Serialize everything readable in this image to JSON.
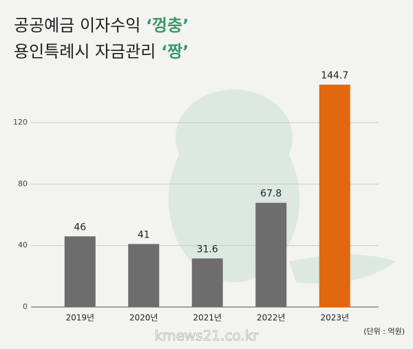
{
  "chart_data": {
    "type": "bar",
    "title_lines": [
      {
        "text": "공공예금 이자수익",
        "highlight": "‘껑충’"
      },
      {
        "text": "용인특례시 자금관리",
        "highlight": "‘짱’"
      }
    ],
    "categories": [
      "2019년",
      "2020년",
      "2021년",
      "2022년",
      "2023년"
    ],
    "values": [
      46,
      41,
      31.6,
      67.8,
      144.7
    ],
    "colors": [
      "#6d6d6d",
      "#6d6d6d",
      "#6d6d6d",
      "#6d6d6d",
      "#e0680f"
    ],
    "ylim": [
      0,
      150
    ],
    "yticks": [
      0,
      40,
      80,
      120
    ],
    "grid": true,
    "unit_note": "(단위 : 억원)",
    "source": "kmews21.co.kr"
  }
}
